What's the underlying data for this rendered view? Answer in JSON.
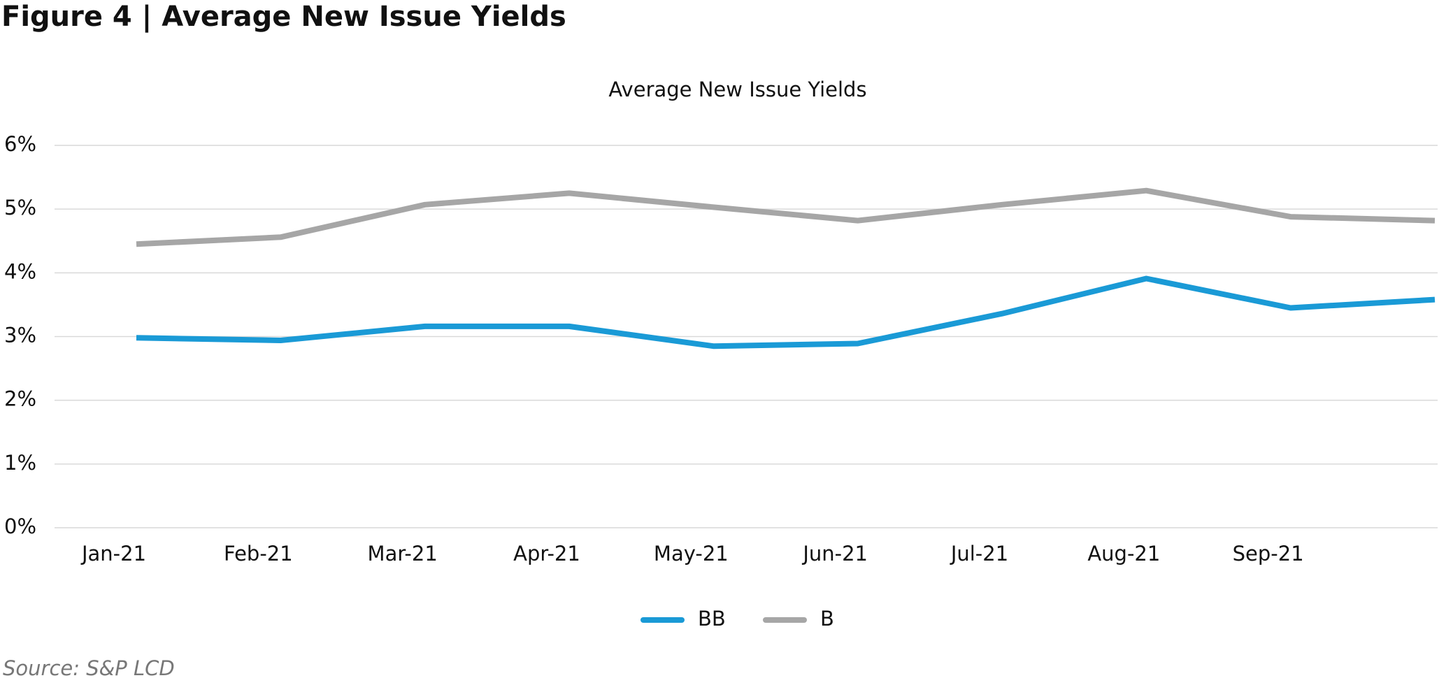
{
  "header": {
    "title": "Figure 4 | Average New Issue Yields"
  },
  "source": "Source: S&P LCD",
  "chart_data": {
    "type": "line",
    "title": "Average New Issue Yields",
    "categories": [
      "Jan-21",
      "Feb-21",
      "Mar-21",
      "Apr-21",
      "May-21",
      "Jun-21",
      "Jul-21",
      "Aug-21",
      "Sep-21",
      null
    ],
    "series": [
      {
        "name": "BB",
        "color": "#1a9ad6",
        "values": [
          2.98,
          2.94,
          3.16,
          3.16,
          2.85,
          2.89,
          3.36,
          3.91,
          3.45,
          3.58
        ]
      },
      {
        "name": "B",
        "color": "#a6a6a6",
        "values": [
          4.45,
          4.56,
          5.07,
          5.25,
          5.03,
          4.82,
          5.07,
          5.29,
          4.88,
          4.82
        ]
      }
    ],
    "ylim": [
      0,
      6
    ],
    "yticks": [
      {
        "value": 0,
        "label": "0%"
      },
      {
        "value": 1,
        "label": "1%"
      },
      {
        "value": 2,
        "label": "2%"
      },
      {
        "value": 3,
        "label": "3%"
      },
      {
        "value": 4,
        "label": "4%"
      },
      {
        "value": 5,
        "label": "5%"
      },
      {
        "value": 6,
        "label": "6%"
      }
    ],
    "grid": true,
    "legend": "bottom"
  }
}
